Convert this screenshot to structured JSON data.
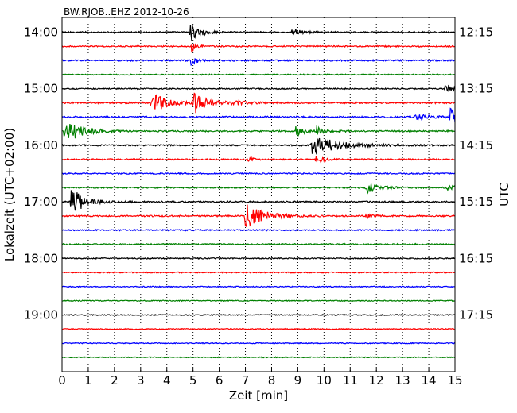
{
  "chart_data": {
    "type": "line",
    "title": "BW.RJOB..EHZ 2012-10-26",
    "xlabel": "Zeit  [min]",
    "ylabel_left": "Lokalzeit (UTC+02:00)",
    "ylabel_right": "UTC",
    "xlim": [
      0,
      15
    ],
    "x_ticks": [
      "0",
      "1",
      "2",
      "3",
      "4",
      "5",
      "6",
      "7",
      "8",
      "9",
      "10",
      "11",
      "12",
      "13",
      "14",
      "15"
    ],
    "left_tick_labels": [
      "14:00",
      "15:00",
      "16:00",
      "17:00",
      "18:00",
      "19:00"
    ],
    "right_tick_labels": [
      "12:15",
      "13:15",
      "14:15",
      "15:15",
      "16:15",
      "17:15"
    ],
    "trace_minutes": 15,
    "trace_colors": [
      "#000000",
      "#ff0000",
      "#0000ff",
      "#008000"
    ],
    "grid": true,
    "traces": [
      {
        "noise": 0.8,
        "events": [
          {
            "t": 4.9,
            "amp": 12,
            "dur": 0.35
          },
          {
            "t": 8.8,
            "amp": 5,
            "dur": 0.3
          }
        ]
      },
      {
        "noise": 0.8,
        "events": [
          {
            "t": 4.95,
            "amp": 6,
            "dur": 0.2
          }
        ]
      },
      {
        "noise": 0.9,
        "events": [
          {
            "t": 4.95,
            "amp": 10,
            "dur": 0.15
          }
        ]
      },
      {
        "noise": 0.7,
        "events": []
      },
      {
        "noise": 0.7,
        "events": [
          {
            "t": 14.6,
            "amp": 7,
            "dur": 0.25
          }
        ]
      },
      {
        "noise": 1.0,
        "events": [
          {
            "t": 3.4,
            "amp": 14,
            "dur": 0.5
          },
          {
            "t": 5.0,
            "amp": 14,
            "dur": 0.5
          },
          {
            "t": 6.5,
            "amp": 3,
            "dur": 0.4
          }
        ]
      },
      {
        "noise": 1.0,
        "events": [
          {
            "t": 14.8,
            "amp": 10,
            "dur": 0.7
          },
          {
            "t": 13.5,
            "amp": 4,
            "dur": 0.5
          }
        ]
      },
      {
        "noise": 0.9,
        "events": [
          {
            "t": 0.1,
            "amp": 16,
            "dur": 0.6
          },
          {
            "t": 8.9,
            "amp": 7,
            "dur": 0.3
          },
          {
            "t": 9.7,
            "amp": 7,
            "dur": 0.3
          }
        ]
      },
      {
        "noise": 0.9,
        "events": [
          {
            "t": 9.5,
            "amp": 14,
            "dur": 0.9
          }
        ]
      },
      {
        "noise": 0.8,
        "events": [
          {
            "t": 9.7,
            "amp": 5,
            "dur": 0.3
          },
          {
            "t": 7.1,
            "amp": 3,
            "dur": 0.2
          }
        ]
      },
      {
        "noise": 0.8,
        "events": []
      },
      {
        "noise": 0.8,
        "events": [
          {
            "t": 11.6,
            "amp": 7,
            "dur": 0.5
          },
          {
            "t": 14.7,
            "amp": 3,
            "dur": 0.4
          }
        ]
      },
      {
        "noise": 1.0,
        "events": [
          {
            "t": 0.35,
            "amp": 18,
            "dur": 0.45
          }
        ]
      },
      {
        "noise": 0.9,
        "events": [
          {
            "t": 7.0,
            "amp": 18,
            "dur": 0.6
          },
          {
            "t": 11.6,
            "amp": 3,
            "dur": 0.3
          }
        ]
      },
      {
        "noise": 0.8,
        "events": []
      },
      {
        "noise": 0.8,
        "events": []
      },
      {
        "noise": 0.7,
        "events": []
      },
      {
        "noise": 0.7,
        "events": []
      },
      {
        "noise": 0.6,
        "events": []
      },
      {
        "noise": 0.6,
        "events": []
      },
      {
        "noise": 0.6,
        "events": []
      },
      {
        "noise": 0.6,
        "events": []
      },
      {
        "noise": 0.6,
        "events": []
      },
      {
        "noise": 0.6,
        "events": []
      }
    ]
  }
}
